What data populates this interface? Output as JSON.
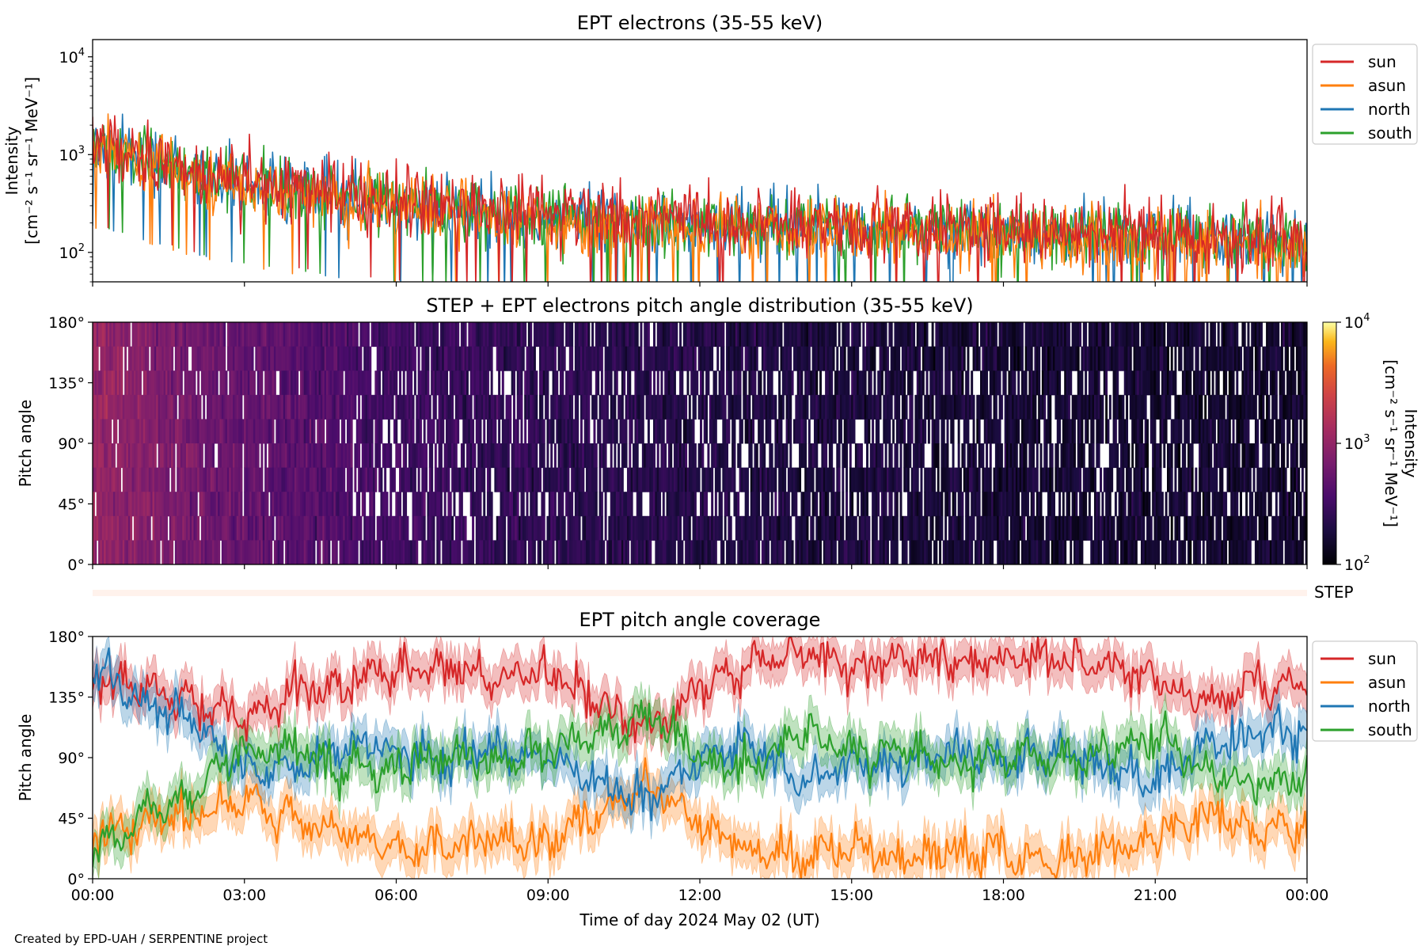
{
  "figure": {
    "credit": "Created by EPD-UAH / SERPENTINE project",
    "xlabel": "Time of day 2024 May 02 (UT)",
    "xticks": [
      "00:00",
      "03:00",
      "06:00",
      "09:00",
      "12:00",
      "15:00",
      "18:00",
      "21:00",
      "00:00"
    ]
  },
  "colors": {
    "sun": "#d62728",
    "asun": "#ff7f0e",
    "north": "#1f77b4",
    "south": "#2ca02c"
  },
  "chart_data": [
    {
      "type": "line",
      "title": "EPT electrons (35-55 keV)",
      "ylabel_line1": "Intensity",
      "ylabel_line2": "[cm⁻² s⁻¹ sr⁻¹ MeV⁻¹]",
      "yscale": "log",
      "ylim": [
        50,
        15000
      ],
      "yticks": [
        {
          "value": 100,
          "base": "10",
          "exp": "2"
        },
        {
          "value": 1000,
          "base": "10",
          "exp": "3"
        },
        {
          "value": 10000,
          "base": "10",
          "exp": "4"
        }
      ],
      "xlim_hours": [
        0,
        24
      ],
      "legend": "outside-right",
      "series": [
        {
          "name": "sun",
          "x_hours": [
            0,
            1,
            2,
            3,
            4,
            5,
            6,
            7,
            8,
            9,
            10,
            11,
            12,
            13,
            14,
            15,
            16,
            17,
            18,
            19,
            20,
            21,
            22,
            23,
            24
          ],
          "values": [
            1300,
            950,
            680,
            550,
            470,
            400,
            350,
            310,
            280,
            260,
            240,
            225,
            215,
            205,
            195,
            185,
            180,
            175,
            170,
            165,
            160,
            155,
            150,
            145,
            140
          ]
        },
        {
          "name": "asun",
          "x_hours": [
            0,
            1,
            2,
            3,
            4,
            5,
            6,
            7,
            8,
            9,
            10,
            11,
            12,
            13,
            14,
            15,
            16,
            17,
            18,
            19,
            20,
            21,
            22,
            23,
            24
          ],
          "values": [
            1200,
            850,
            600,
            480,
            400,
            340,
            290,
            260,
            235,
            215,
            200,
            190,
            180,
            172,
            165,
            158,
            152,
            148,
            144,
            140,
            136,
            132,
            128,
            124,
            120
          ]
        },
        {
          "name": "north",
          "x_hours": [
            0,
            1,
            2,
            3,
            4,
            5,
            6,
            7,
            8,
            9,
            10,
            11,
            12,
            13,
            14,
            15,
            16,
            17,
            18,
            19,
            20,
            21,
            22,
            23,
            24
          ],
          "values": [
            1250,
            900,
            640,
            500,
            420,
            360,
            310,
            275,
            250,
            230,
            215,
            200,
            190,
            182,
            175,
            168,
            162,
            157,
            152,
            148,
            144,
            140,
            136,
            132,
            128
          ]
        },
        {
          "name": "south",
          "x_hours": [
            0,
            1,
            2,
            3,
            4,
            5,
            6,
            7,
            8,
            9,
            10,
            11,
            12,
            13,
            14,
            15,
            16,
            17,
            18,
            19,
            20,
            21,
            22,
            23,
            24
          ],
          "values": [
            1280,
            920,
            660,
            520,
            440,
            375,
            325,
            290,
            262,
            242,
            226,
            212,
            202,
            193,
            185,
            177,
            171,
            166,
            161,
            157,
            153,
            149,
            145,
            141,
            137
          ]
        }
      ]
    },
    {
      "type": "heatmap",
      "title": "STEP + EPT electrons pitch angle distribution (35-55 keV)",
      "ylabel": "Pitch angle",
      "ylim": [
        0,
        180
      ],
      "yticks": [
        "0°",
        "45°",
        "90°",
        "135°",
        "180°"
      ],
      "ytick_values": [
        0,
        45,
        90,
        135,
        180
      ],
      "xlim_hours": [
        0,
        24
      ],
      "colormap": "inferno",
      "colorbar": {
        "label_line1": "Intensity",
        "label_line2": "[cm⁻² s⁻¹ sr⁻¹ MeV⁻¹]",
        "scale": "log",
        "range": [
          100,
          10000
        ],
        "ticks": [
          {
            "value": 100,
            "base": "10",
            "exp": "2"
          },
          {
            "value": 1000,
            "base": "10",
            "exp": "3"
          },
          {
            "value": 10000,
            "base": "10",
            "exp": "4"
          }
        ]
      },
      "median_intensity_hours": [
        0,
        1,
        2,
        3,
        4,
        5,
        6,
        8,
        10,
        12,
        14,
        16,
        18,
        20,
        22,
        24
      ],
      "median_intensity_values": [
        1100,
        800,
        620,
        520,
        450,
        380,
        300,
        260,
        230,
        210,
        190,
        180,
        170,
        165,
        160,
        155
      ]
    },
    {
      "type": "bar",
      "label": "STEP",
      "color": "#fff2ec"
    },
    {
      "type": "line",
      "title": "EPT pitch angle coverage",
      "ylabel": "Pitch angle",
      "ylim": [
        0,
        180
      ],
      "yticks": [
        "0°",
        "45°",
        "90°",
        "135°",
        "180°"
      ],
      "ytick_values": [
        0,
        45,
        90,
        135,
        180
      ],
      "xlim_hours": [
        0,
        24
      ],
      "legend": "outside-right",
      "series": [
        {
          "name": "sun",
          "x_hours": [
            0,
            1,
            2,
            3,
            4,
            5,
            6,
            7,
            8,
            9,
            10,
            11,
            12,
            13,
            14,
            15,
            16,
            17,
            18,
            19,
            20,
            21,
            22,
            23,
            24
          ],
          "values": [
            150,
            140,
            130,
            120,
            138,
            145,
            158,
            155,
            150,
            152,
            130,
            110,
            140,
            160,
            165,
            155,
            165,
            160,
            162,
            165,
            160,
            150,
            130,
            145,
            140
          ]
        },
        {
          "name": "asun",
          "x_hours": [
            0,
            1,
            2,
            3,
            4,
            5,
            6,
            7,
            8,
            9,
            10,
            11,
            12,
            13,
            14,
            15,
            16,
            17,
            18,
            19,
            20,
            21,
            22,
            23,
            24
          ],
          "values": [
            30,
            40,
            50,
            60,
            42,
            35,
            22,
            25,
            30,
            28,
            50,
            70,
            40,
            20,
            15,
            25,
            15,
            20,
            18,
            15,
            20,
            30,
            50,
            35,
            40
          ]
        },
        {
          "name": "north",
          "x_hours": [
            0,
            1,
            2,
            3,
            4,
            5,
            6,
            7,
            8,
            9,
            10,
            11,
            12,
            13,
            14,
            15,
            16,
            17,
            18,
            19,
            20,
            21,
            22,
            23,
            24
          ],
          "values": [
            160,
            130,
            115,
            80,
            85,
            100,
            95,
            90,
            95,
            90,
            70,
            60,
            90,
            100,
            70,
            85,
            85,
            95,
            90,
            95,
            85,
            75,
            100,
            110,
            105
          ]
        },
        {
          "name": "south",
          "x_hours": [
            0,
            1,
            2,
            3,
            4,
            5,
            6,
            7,
            8,
            9,
            10,
            11,
            12,
            13,
            14,
            15,
            16,
            17,
            18,
            19,
            20,
            21,
            22,
            23,
            24
          ],
          "values": [
            20,
            50,
            65,
            100,
            95,
            80,
            85,
            90,
            85,
            90,
            110,
            120,
            90,
            80,
            110,
            95,
            95,
            85,
            90,
            85,
            95,
            105,
            80,
            70,
            75
          ]
        }
      ]
    }
  ]
}
